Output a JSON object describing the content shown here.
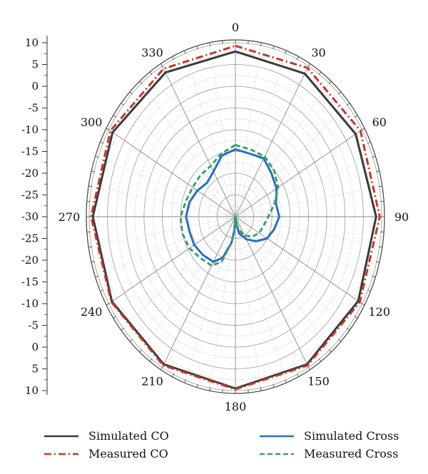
{
  "chart_data": {
    "type": "polar-line",
    "radial_axis": {
      "ticks": [
        "10",
        "5",
        "0",
        "-5",
        "-10",
        "-15",
        "-20",
        "-25",
        "-30",
        "-25",
        "-20",
        "-15",
        "-10",
        "-5",
        "0",
        "5",
        "10"
      ],
      "range": [
        -30,
        10
      ]
    },
    "angular_axis": {
      "labels": [
        "0",
        "30",
        "60",
        "90",
        "120",
        "150",
        "180",
        "210",
        "240",
        "270",
        "300",
        "330"
      ],
      "degrees": [
        0,
        30,
        60,
        90,
        120,
        150,
        180,
        210,
        240,
        270,
        300,
        330
      ]
    },
    "grid": true,
    "legend_position": "bottom",
    "series": [
      {
        "name": "Simulated CO",
        "color": "#3a3a3a",
        "style": "solid",
        "theta": [
          0,
          30,
          60,
          90,
          120,
          150,
          180,
          210,
          240,
          270,
          300,
          330,
          360
        ],
        "r": [
          8,
          8,
          8,
          8.5,
          8.8,
          9.2,
          9.5,
          9.2,
          9,
          9,
          8.8,
          8.3,
          8
        ]
      },
      {
        "name": "Measured CO",
        "color": "#c0392b",
        "style": "dashdot",
        "theta": [
          0,
          30,
          60,
          90,
          120,
          150,
          180,
          210,
          240,
          270,
          300,
          330,
          360
        ],
        "r": [
          9.3,
          9.5,
          9.5,
          9.5,
          9.3,
          9.5,
          9.7,
          9.5,
          9.2,
          9.5,
          9.5,
          9.3,
          9.3
        ]
      },
      {
        "name": "Simulated Cross",
        "color": "#2a6ebb",
        "style": "solid",
        "theta": [
          0,
          15,
          30,
          45,
          60,
          75,
          90,
          105,
          120,
          135,
          150,
          165,
          170,
          175,
          180,
          185,
          190,
          200,
          210,
          225,
          240,
          255,
          270,
          285,
          300,
          315,
          330,
          345,
          360
        ],
        "r": [
          -14.5,
          -15,
          -14.5,
          -16,
          -17,
          -18.5,
          -18,
          -19,
          -20,
          -22,
          -24,
          -26,
          -28,
          -30,
          -30,
          -27,
          -24,
          -20,
          -18,
          -17.5,
          -17,
          -17,
          -16.5,
          -17,
          -18,
          -19,
          -18,
          -15.5,
          -14.5
        ]
      },
      {
        "name": "Measured Cross",
        "color": "#3f9e6e",
        "style": "dashed",
        "theta": [
          0,
          15,
          30,
          45,
          60,
          75,
          90,
          105,
          120,
          135,
          150,
          165,
          170,
          175,
          180,
          185,
          190,
          200,
          210,
          225,
          240,
          255,
          270,
          285,
          300,
          315,
          330,
          345,
          360
        ],
        "r": [
          -13.5,
          -14,
          -14,
          -15,
          -16.5,
          -19,
          -21,
          -22,
          -22.5,
          -23.5,
          -25,
          -27,
          -28.5,
          -30,
          -30,
          -27,
          -24,
          -19,
          -17,
          -16.5,
          -15.5,
          -15,
          -15,
          -16,
          -16.5,
          -16.5,
          -16.5,
          -15,
          -13.5
        ]
      }
    ]
  }
}
